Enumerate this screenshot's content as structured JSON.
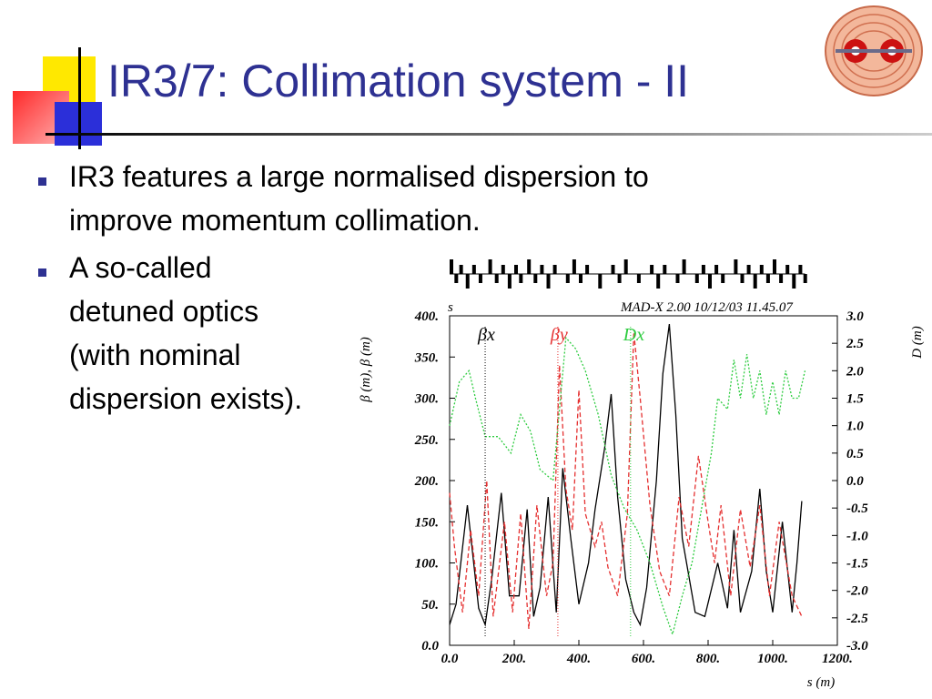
{
  "slide": {
    "title": "IR3/7: Collimation system - II",
    "bullets": [
      {
        "lines": [
          "IR3 features a large normalised dispersion to",
          "improve momentum collimation."
        ]
      },
      {
        "lines": [
          "A so-called",
          "detuned optics",
          "(with nominal",
          "dispersion exists)."
        ]
      }
    ],
    "colors": {
      "title": "#2E3192",
      "bullet": "#2E3192",
      "deco_yellow": "#FFD700",
      "deco_blue": "#2B2FD9",
      "deco_red": "#FF4040"
    }
  },
  "chart_data": {
    "type": "line",
    "header": "MAD-X 2.00   10/12/03 11.45.07",
    "top_label": "s",
    "xlabel": "s (m)",
    "ylabel": "β (m), β (m)",
    "y2label": "D (m)",
    "xlim": [
      0,
      1200
    ],
    "ylim": [
      0,
      400
    ],
    "y2lim": [
      -3.0,
      3.0
    ],
    "xticks": [
      "0.0",
      "200.",
      "400.",
      "600.",
      "800.",
      "1000.",
      "1200."
    ],
    "yticks": [
      "0.0",
      "50.",
      "100.",
      "150.",
      "200.",
      "250.",
      "300.",
      "350.",
      "400."
    ],
    "y2ticks": [
      "-3.0",
      "-2.5",
      "-2.0",
      "-1.5",
      "-1.0",
      "-0.5",
      "0.0",
      "0.5",
      "1.0",
      "1.5",
      "2.0",
      "2.5",
      "3.0"
    ],
    "legend": [
      "βx",
      "βy",
      "Dx"
    ],
    "series": [
      {
        "name": "βx",
        "color": "#000000",
        "axis": "left",
        "x": [
          0,
          20,
          55,
          90,
          110,
          130,
          160,
          185,
          215,
          240,
          260,
          280,
          305,
          330,
          350,
          375,
          400,
          430,
          450,
          480,
          500,
          520,
          545,
          570,
          590,
          610,
          640,
          660,
          680,
          700,
          720,
          760,
          790,
          830,
          860,
          880,
          900,
          935,
          960,
          980,
          1000,
          1030,
          1060,
          1075,
          1090
        ],
        "y": [
          25,
          50,
          170,
          45,
          25,
          80,
          185,
          60,
          60,
          165,
          35,
          70,
          180,
          40,
          215,
          130,
          50,
          100,
          165,
          240,
          305,
          180,
          80,
          40,
          25,
          70,
          200,
          330,
          390,
          280,
          130,
          40,
          35,
          100,
          45,
          140,
          40,
          90,
          190,
          90,
          40,
          150,
          40,
          100,
          175
        ]
      },
      {
        "name": "βy",
        "color": "#E53030",
        "axis": "left",
        "x": [
          0,
          15,
          40,
          65,
          90,
          115,
          135,
          170,
          195,
          220,
          245,
          270,
          300,
          320,
          340,
          360,
          380,
          400,
          420,
          450,
          470,
          490,
          520,
          550,
          570,
          590,
          620,
          650,
          680,
          710,
          740,
          770,
          800,
          820,
          840,
          870,
          900,
          930,
          960,
          990,
          1020,
          1060,
          1090
        ],
        "y": [
          185,
          120,
          40,
          140,
          60,
          200,
          35,
          150,
          40,
          160,
          20,
          170,
          60,
          100,
          340,
          190,
          140,
          310,
          160,
          120,
          150,
          95,
          60,
          160,
          380,
          300,
          170,
          90,
          60,
          180,
          120,
          230,
          150,
          100,
          170,
          60,
          165,
          95,
          170,
          60,
          150,
          60,
          35
        ]
      },
      {
        "name": "Dx",
        "color": "#2ECC40",
        "axis": "right",
        "x": [
          0,
          30,
          60,
          80,
          110,
          150,
          190,
          220,
          250,
          280,
          320,
          360,
          390,
          420,
          460,
          500,
          540,
          580,
          620,
          660,
          690,
          720,
          750,
          780,
          810,
          830,
          860,
          880,
          900,
          920,
          940,
          960,
          980,
          1000,
          1020,
          1040,
          1060,
          1080,
          1100
        ],
        "y": [
          1.0,
          1.8,
          2.0,
          1.5,
          0.8,
          0.8,
          0.5,
          1.2,
          0.9,
          0.2,
          0.0,
          2.6,
          2.4,
          2.0,
          1.2,
          0.1,
          -0.5,
          -0.9,
          -1.5,
          -2.3,
          -2.8,
          -2.1,
          -1.5,
          -0.5,
          0.5,
          1.5,
          1.3,
          2.2,
          1.5,
          2.3,
          1.5,
          2.0,
          1.2,
          1.8,
          1.2,
          2.0,
          1.5,
          1.5,
          2.0
        ]
      }
    ],
    "markers": [
      {
        "label": "βx",
        "x": 110,
        "color": "#000000"
      },
      {
        "label": "βy",
        "x": 335,
        "color": "#E53030"
      },
      {
        "label": "Dx",
        "x": 560,
        "color": "#2ECC40"
      }
    ],
    "grid": false
  }
}
